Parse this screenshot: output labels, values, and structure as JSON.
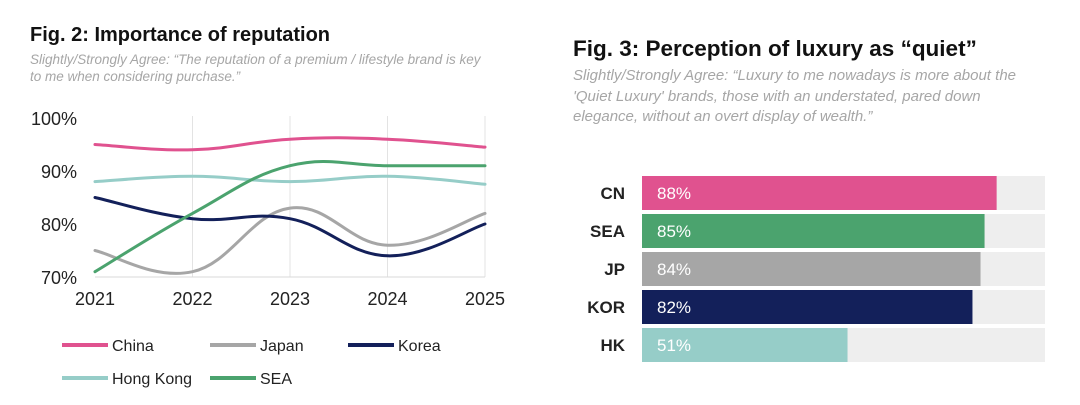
{
  "chart_data": [
    {
      "type": "line",
      "title": "Fig. 2: Importance of reputation",
      "subtitle": "Slightly/Strongly Agree: “The reputation of a premium / lifestyle brand is key to me when considering purchase.”",
      "x": [
        "2021",
        "2022",
        "2023",
        "2024",
        "2025"
      ],
      "yticks": [
        "100%",
        "90%",
        "80%",
        "70%"
      ],
      "ylim": [
        70,
        100
      ],
      "grid": "vertical",
      "legend_position": "bottom",
      "series": [
        {
          "name": "China",
          "color": "#e0528f",
          "values": [
            95,
            94,
            96,
            96,
            94.5
          ]
        },
        {
          "name": "Japan",
          "color": "#a6a6a6",
          "values": [
            75,
            71,
            83,
            76,
            82
          ]
        },
        {
          "name": "Korea",
          "color": "#13205a",
          "values": [
            85,
            81,
            81,
            74,
            80
          ]
        },
        {
          "name": "Hong Kong",
          "color": "#96cdc8",
          "values": [
            88,
            89,
            88,
            89,
            87.5
          ]
        },
        {
          "name": "SEA",
          "color": "#4ba36e",
          "values": [
            71,
            82,
            91,
            91,
            91
          ]
        }
      ]
    },
    {
      "type": "bar",
      "orientation": "horizontal",
      "title": "Fig. 3: Perception of luxury as “quiet”",
      "subtitle": "Slightly/Strongly Agree: “Luxury to me nowadays is more about the 'Quiet Luxury' brands, those with an understated, pared down elegance, without an overt display of wealth.”",
      "categories": [
        "CN",
        "SEA",
        "JP",
        "KOR",
        "HK"
      ],
      "values": [
        88,
        85,
        84,
        82,
        51
      ],
      "labels": [
        "88%",
        "85%",
        "84%",
        "82%",
        "51%"
      ],
      "colors": [
        "#e0528f",
        "#4ba36e",
        "#a6a6a6",
        "#13205a",
        "#96cdc8"
      ],
      "track_color": "#eeeeee",
      "xlim": [
        0,
        100
      ]
    }
  ]
}
